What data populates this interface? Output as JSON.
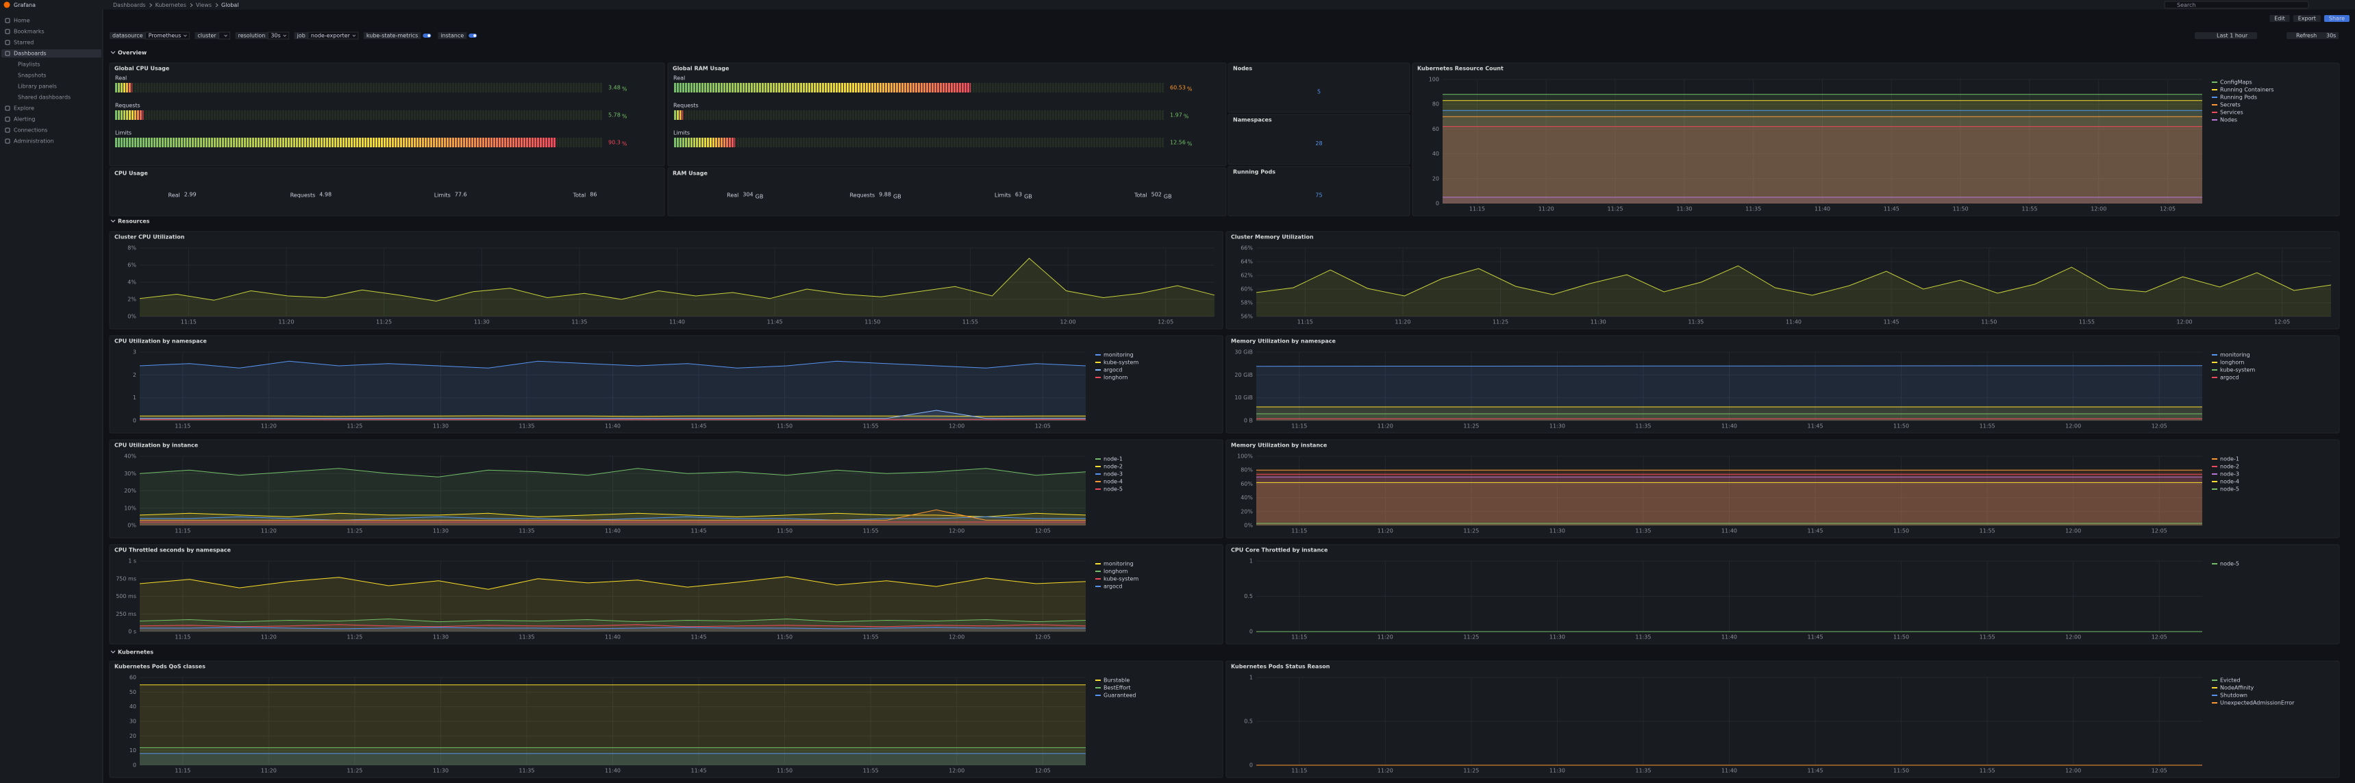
{
  "nav": {
    "brand": "Grafana",
    "breadcrumb": [
      "Dashboards",
      "Kubernetes",
      "Views",
      "Global"
    ],
    "search": "Search"
  },
  "sidebar": [
    "Home",
    "Bookmarks",
    "Starred",
    "Dashboards",
    "Playlists",
    "Snapshots",
    "Library panels",
    "Shared dashboards",
    "Explore",
    "Alerting",
    "Connections",
    "Administration"
  ],
  "toolbar": [
    "Edit",
    "Export",
    "Share"
  ],
  "variables": [
    {
      "label": "datasource",
      "value": "Prometheus"
    },
    {
      "label": "cluster"
    },
    {
      "label": "resolution",
      "value": "30s"
    },
    {
      "label": "job",
      "value": "node-exporter"
    }
  ],
  "toggles": [
    "kube-state-metrics",
    "instance"
  ],
  "time": {
    "range": "Last 1 hour",
    "refresh": "Refresh",
    "interval": "30s"
  },
  "rows": [
    "Overview",
    "Resources",
    "Kubernetes"
  ],
  "time_labels": [
    "11:15",
    "11:20",
    "11:25",
    "11:30",
    "11:35",
    "11:40",
    "11:45",
    "11:50",
    "11:55",
    "12:00",
    "12:05"
  ],
  "panels": [
    {
      "type": "bargauge",
      "title": "Global CPU Usage",
      "max": 100,
      "items": [
        {
          "name": "Real",
          "value": 3.48,
          "unit": "%",
          "color": "#73bf69"
        },
        {
          "name": "Requests",
          "value": 5.78,
          "unit": "%",
          "color": "#73bf69"
        },
        {
          "name": "Limits",
          "value": 90.3,
          "unit": "%",
          "color": "#f2495c"
        }
      ]
    },
    {
      "type": "bargauge",
      "title": "Global RAM Usage",
      "max": 100,
      "items": [
        {
          "name": "Real",
          "value": 60.53,
          "unit": "%",
          "color": "#ff9830"
        },
        {
          "name": "Requests",
          "value": 1.97,
          "unit": "%",
          "color": "#73bf69"
        },
        {
          "name": "Limits",
          "value": 12.56,
          "unit": "%",
          "color": "#73bf69"
        }
      ]
    },
    {
      "type": "stat",
      "title": "Nodes",
      "value": 5,
      "color": "#5794f2"
    },
    {
      "type": "stat",
      "title": "Namespaces",
      "value": 28,
      "color": "#5794f2"
    },
    {
      "type": "stat",
      "title": "Running Pods",
      "value": 75,
      "color": "#5794f2"
    },
    {
      "type": "timeseries",
      "title": "Kubernetes Resource Count",
      "ylim": [
        0,
        100
      ],
      "yticks": [
        0,
        20,
        40,
        60,
        80,
        100
      ],
      "series": [
        {
          "name": "ConfigMaps",
          "color": "#73bf69",
          "values": [
            88,
            88
          ]
        },
        {
          "name": "Running Containers",
          "color": "#fade2a",
          "values": [
            83,
            83
          ]
        },
        {
          "name": "Running Pods",
          "color": "#5794f2",
          "values": [
            75,
            75
          ]
        },
        {
          "name": "Secrets",
          "color": "#ff9830",
          "values": [
            70,
            70
          ]
        },
        {
          "name": "Services",
          "color": "#f2495c",
          "values": [
            62,
            62
          ]
        },
        {
          "name": "Nodes",
          "color": "#b877d9",
          "values": [
            5,
            5
          ]
        }
      ]
    },
    {
      "type": "multistat",
      "title": "CPU Usage",
      "items": [
        {
          "name": "Real",
          "value": 2.99
        },
        {
          "name": "Requests",
          "value": 4.98
        },
        {
          "name": "Limits",
          "value": 77.6
        },
        {
          "name": "Total",
          "value": 86
        }
      ]
    },
    {
      "type": "multistat",
      "title": "RAM Usage",
      "items": [
        {
          "name": "Real",
          "value": 304,
          "unit": "GB"
        },
        {
          "name": "Requests",
          "value": 9.88,
          "unit": "GB"
        },
        {
          "name": "Limits",
          "value": 63.0,
          "unit": "GB"
        },
        {
          "name": "Total",
          "value": 502,
          "unit": "GB"
        }
      ]
    },
    {
      "type": "timeseries",
      "title": "Cluster CPU Utilization",
      "ylim": [
        0,
        8
      ],
      "yticks": [
        {
          "value": 0,
          "label": "0%"
        },
        {
          "value": 2,
          "label": "2%"
        },
        {
          "value": 4,
          "label": "4%"
        },
        {
          "value": 6,
          "label": "6%"
        },
        {
          "value": 8,
          "label": "8%"
        }
      ],
      "series": [
        {
          "color": "#c8d23c",
          "values": [
            2.1,
            2.6,
            1.9,
            3.0,
            2.4,
            2.2,
            3.1,
            2.5,
            1.8,
            2.9,
            3.3,
            2.2,
            2.7,
            2.0,
            3.0,
            2.4,
            2.8,
            2.1,
            3.2,
            2.6,
            2.3,
            2.9,
            3.5,
            2.4,
            6.8,
            3.0,
            2.2,
            2.7,
            3.6,
            2.5
          ]
        }
      ]
    },
    {
      "type": "timeseries",
      "title": "Cluster Memory Utilization",
      "ylim": [
        56,
        66
      ],
      "yticks": [
        {
          "value": 56,
          "label": "56%"
        },
        {
          "value": 58,
          "label": "58%"
        },
        {
          "value": 60,
          "label": "60%"
        },
        {
          "value": 62,
          "label": "62%"
        },
        {
          "value": 64,
          "label": "64%"
        },
        {
          "value": 66,
          "label": "66%"
        }
      ],
      "series": [
        {
          "color": "#c8d23c",
          "values": [
            59.5,
            60.2,
            62.8,
            60.1,
            59.0,
            61.5,
            63.0,
            60.4,
            59.2,
            60.8,
            62.1,
            59.6,
            61.0,
            63.4,
            60.2,
            59.1,
            60.5,
            62.6,
            60.0,
            61.3,
            59.4,
            60.7,
            63.2,
            60.1,
            59.6,
            61.8,
            60.3,
            62.4,
            59.8,
            60.6
          ]
        }
      ]
    },
    {
      "type": "timeseries",
      "title": "CPU Utilization by namespace",
      "ylim": [
        0,
        3
      ],
      "yticks": [
        0,
        1,
        2,
        3
      ],
      "series": [
        {
          "name": "monitoring",
          "color": "#5794f2",
          "values": [
            2.4,
            2.5,
            2.3,
            2.6,
            2.4,
            2.5,
            2.4,
            2.3,
            2.6,
            2.5,
            2.4,
            2.5,
            2.3,
            2.4,
            2.6,
            2.5,
            2.4,
            2.3,
            2.5,
            2.4
          ]
        },
        {
          "name": "kube-system",
          "color": "#fade2a",
          "values": [
            0.2,
            0.2,
            0.21,
            0.2,
            0.19,
            0.2,
            0.2,
            0.21,
            0.2,
            0.2,
            0.19,
            0.2,
            0.2,
            0.21,
            0.2,
            0.2,
            0.2,
            0.19,
            0.2,
            0.2
          ]
        },
        {
          "name": "argocd",
          "color": "#8ab8ff",
          "values": [
            0.1,
            0.1,
            0.1,
            0.1,
            0.1,
            0.1,
            0.1,
            0.1,
            0.1,
            0.1,
            0.1,
            0.1,
            0.1,
            0.1,
            0.1,
            0.1,
            0.45,
            0.1,
            0.1,
            0.1
          ]
        },
        {
          "name": "longhorn",
          "color": "#f2495c",
          "values": [
            0.05,
            0.05,
            0.05,
            0.05,
            0.05,
            0.05,
            0.05,
            0.05,
            0.05,
            0.05,
            0.05,
            0.05,
            0.05,
            0.05,
            0.05,
            0.05,
            0.05,
            0.05,
            0.05,
            0.05
          ]
        }
      ]
    },
    {
      "type": "timeseries",
      "title": "Memory Utilization by namespace",
      "ylim": [
        0,
        30
      ],
      "yticks": [
        {
          "value": 0,
          "label": "0 B"
        },
        {
          "value": 10,
          "label": "10 GiB"
        },
        {
          "value": 20,
          "label": "20 GiB"
        },
        {
          "value": 30,
          "label": "30 GiB"
        }
      ],
      "series": [
        {
          "name": "monitoring",
          "color": "#5794f2",
          "values": [
            23.8,
            24.1
          ]
        },
        {
          "name": "longhorn",
          "color": "#fade2a",
          "values": [
            6,
            6
          ]
        },
        {
          "name": "kube-system",
          "color": "#73bf69",
          "values": [
            3,
            3
          ]
        },
        {
          "name": "argocd",
          "color": "#f2495c",
          "values": [
            0.8,
            0.8
          ]
        }
      ]
    },
    {
      "type": "timeseries",
      "title": "CPU Utilization by instance",
      "ylim": [
        0,
        40
      ],
      "yticks": [
        {
          "value": 0,
          "label": "0%"
        },
        {
          "value": 10,
          "label": "10%"
        },
        {
          "value": 20,
          "label": "20%"
        },
        {
          "value": 30,
          "label": "30%"
        },
        {
          "value": 40,
          "label": "40%"
        }
      ],
      "series": [
        {
          "name": "node-1",
          "color": "#73bf69",
          "values": [
            30,
            32,
            29,
            31,
            33,
            30,
            28,
            32,
            31,
            29,
            33,
            30,
            31,
            29,
            32,
            30,
            31,
            33,
            29,
            31
          ]
        },
        {
          "name": "node-2",
          "color": "#fade2a",
          "values": [
            6,
            7,
            6,
            5,
            7,
            6,
            6,
            7,
            5,
            6,
            7,
            6,
            5,
            6,
            7,
            6,
            6,
            5,
            7,
            6
          ]
        },
        {
          "name": "node-3",
          "color": "#5794f2",
          "values": [
            4,
            4,
            5,
            4,
            3,
            4,
            5,
            4,
            4,
            3,
            4,
            5,
            4,
            4,
            3,
            4,
            4,
            5,
            4,
            4
          ]
        },
        {
          "name": "node-4",
          "color": "#ff9830",
          "values": [
            3,
            3,
            3,
            3,
            3,
            3,
            3,
            3,
            3,
            3,
            3,
            3,
            3,
            3,
            3,
            3,
            9,
            3,
            3,
            3
          ]
        },
        {
          "name": "node-5",
          "color": "#f2495c",
          "values": [
            2,
            2,
            2,
            2,
            2,
            2,
            2,
            2,
            2,
            2,
            2,
            2,
            2,
            2,
            2,
            2,
            2,
            2,
            2,
            2
          ]
        }
      ]
    },
    {
      "type": "timeseries",
      "title": "Memory Utilization by instance",
      "ylim": [
        0,
        100
      ],
      "yticks": [
        {
          "value": 0,
          "label": "0%"
        },
        {
          "value": 20,
          "label": "20%"
        },
        {
          "value": 40,
          "label": "40%"
        },
        {
          "value": 60,
          "label": "60%"
        },
        {
          "value": 80,
          "label": "80%"
        },
        {
          "value": 100,
          "label": "100%"
        }
      ],
      "series": [
        {
          "name": "node-1",
          "color": "#ff9830",
          "values": [
            80,
            80
          ]
        },
        {
          "name": "node-2",
          "color": "#f2495c",
          "values": [
            74,
            74
          ]
        },
        {
          "name": "node-3",
          "color": "#b877d9",
          "values": [
            70,
            70
          ]
        },
        {
          "name": "node-4",
          "color": "#fade2a",
          "values": [
            62,
            62
          ]
        },
        {
          "name": "node-5",
          "color": "#73bf69",
          "values": [
            3,
            3
          ]
        }
      ]
    },
    {
      "type": "timeseries",
      "title": "CPU Throttled seconds by namespace",
      "ylim": [
        0,
        1
      ],
      "yticks": [
        {
          "value": 0,
          "label": "0 s"
        },
        {
          "value": 0.25,
          "label": "250 ms"
        },
        {
          "value": 0.5,
          "label": "500 ms"
        },
        {
          "value": 0.75,
          "label": "750 ms"
        },
        {
          "value": 1,
          "label": "1 s"
        }
      ],
      "series": [
        {
          "name": "monitoring",
          "color": "#fade2a",
          "values": [
            0.68,
            0.74,
            0.62,
            0.71,
            0.77,
            0.65,
            0.72,
            0.6,
            0.75,
            0.69,
            0.73,
            0.63,
            0.7,
            0.78,
            0.66,
            0.72,
            0.64,
            0.76,
            0.68,
            0.71
          ]
        },
        {
          "name": "longhorn",
          "color": "#73bf69",
          "values": [
            0.15,
            0.17,
            0.14,
            0.16,
            0.15,
            0.18,
            0.14,
            0.16,
            0.15,
            0.17,
            0.14,
            0.16,
            0.15,
            0.18,
            0.14,
            0.16,
            0.15,
            0.17,
            0.14,
            0.16
          ]
        },
        {
          "name": "kube-system",
          "color": "#f2495c",
          "values": [
            0.08,
            0.09,
            0.07,
            0.08,
            0.1,
            0.08,
            0.07,
            0.09,
            0.08,
            0.08,
            0.1,
            0.07,
            0.08,
            0.09,
            0.08,
            0.07,
            0.09,
            0.08,
            0.1,
            0.08
          ]
        },
        {
          "name": "argocd",
          "color": "#5794f2",
          "values": [
            0.05,
            0.05,
            0.06,
            0.05,
            0.04,
            0.05,
            0.06,
            0.05,
            0.05,
            0.04,
            0.05,
            0.06,
            0.05,
            0.05,
            0.04,
            0.05,
            0.06,
            0.05,
            0.05,
            0.05
          ]
        }
      ]
    },
    {
      "type": "timeseries",
      "title": "CPU Core Throttled by instance",
      "ylim": [
        0,
        1
      ],
      "yticks": [
        0,
        0.5,
        1
      ],
      "series": [
        {
          "name": "node-5",
          "color": "#73bf69",
          "values": [
            0,
            0
          ]
        }
      ]
    },
    {
      "type": "timeseries",
      "title": "Kubernetes Pods QoS classes",
      "ylim": [
        0,
        60
      ],
      "yticks": [
        0,
        10,
        20,
        30,
        40,
        50,
        60
      ],
      "series": [
        {
          "name": "Burstable",
          "color": "#fade2a",
          "values": [
            55,
            55
          ]
        },
        {
          "name": "BestEffort",
          "color": "#73bf69",
          "values": [
            12,
            12
          ]
        },
        {
          "name": "Guaranteed",
          "color": "#5794f2",
          "values": [
            8,
            8
          ]
        }
      ]
    },
    {
      "type": "timeseries",
      "title": "Kubernetes Pods Status Reason",
      "ylim": [
        0,
        1
      ],
      "yticks": [
        0,
        0.5,
        1
      ],
      "series": [
        {
          "name": "Evicted",
          "color": "#73bf69",
          "values": [
            0,
            0
          ]
        },
        {
          "name": "NodeAffinity",
          "color": "#fade2a",
          "values": [
            0,
            0
          ]
        },
        {
          "name": "Shutdown",
          "color": "#5794f2",
          "values": [
            0,
            0
          ]
        },
        {
          "name": "UnexpectedAdmissionError",
          "color": "#ff9830",
          "values": [
            0,
            0
          ]
        }
      ]
    }
  ]
}
